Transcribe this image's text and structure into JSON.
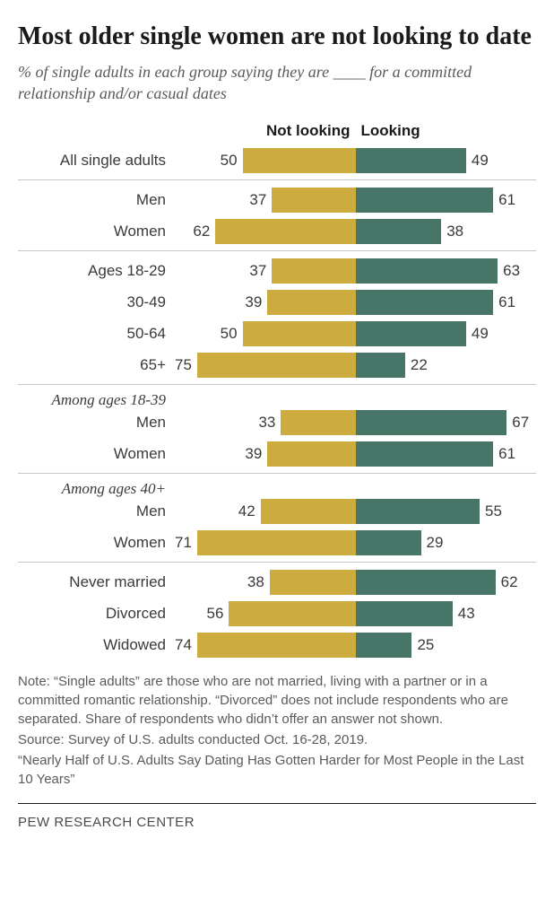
{
  "title": "Most older single women are not looking to date",
  "subtitle_pre": "% of single adults in each group saying they are ",
  "subtitle_blank": "____",
  "subtitle_post": " for a committed relationship and/or casual dates",
  "legend": {
    "left": "Not looking",
    "right": "Looking"
  },
  "colors": {
    "not_looking": "#ccab3f",
    "looking": "#477568",
    "text": "#3a3a3a",
    "divider": "#c7c7c7",
    "background": "#ffffff"
  },
  "scale_max": 80,
  "groups": [
    {
      "rows": [
        {
          "label": "All single adults",
          "not_looking": 50,
          "looking": 49
        }
      ]
    },
    {
      "rows": [
        {
          "label": "Men",
          "not_looking": 37,
          "looking": 61
        },
        {
          "label": "Women",
          "not_looking": 62,
          "looking": 38
        }
      ]
    },
    {
      "rows": [
        {
          "label": "Ages 18-29",
          "not_looking": 37,
          "looking": 63
        },
        {
          "label": "30-49",
          "not_looking": 39,
          "looking": 61
        },
        {
          "label": "50-64",
          "not_looking": 50,
          "looking": 49
        },
        {
          "label": "65+",
          "not_looking": 75,
          "looking": 22
        }
      ]
    },
    {
      "subhead": "Among ages 18-39",
      "rows": [
        {
          "label": "Men",
          "not_looking": 33,
          "looking": 67
        },
        {
          "label": "Women",
          "not_looking": 39,
          "looking": 61
        }
      ]
    },
    {
      "subhead": "Among ages 40+",
      "rows": [
        {
          "label": "Men",
          "not_looking": 42,
          "looking": 55
        },
        {
          "label": "Women",
          "not_looking": 71,
          "looking": 29
        }
      ]
    },
    {
      "rows": [
        {
          "label": "Never married",
          "not_looking": 38,
          "looking": 62
        },
        {
          "label": "Divorced",
          "not_looking": 56,
          "looking": 43
        },
        {
          "label": "Widowed",
          "not_looking": 74,
          "looking": 25
        }
      ]
    }
  ],
  "note": "Note: “Single adults” are those who are not married, living with a partner or in a committed romantic relationship. “Divorced” does not include respondents who are separated. Share of respondents who didn’t offer an answer not shown.",
  "source": "Source: Survey of U.S. adults conducted Oct. 16-28, 2019.",
  "quoted": "“Nearly Half of U.S. Adults Say Dating Has Gotten Harder for Most People in the Last 10 Years”",
  "brand": "PEW RESEARCH CENTER"
}
